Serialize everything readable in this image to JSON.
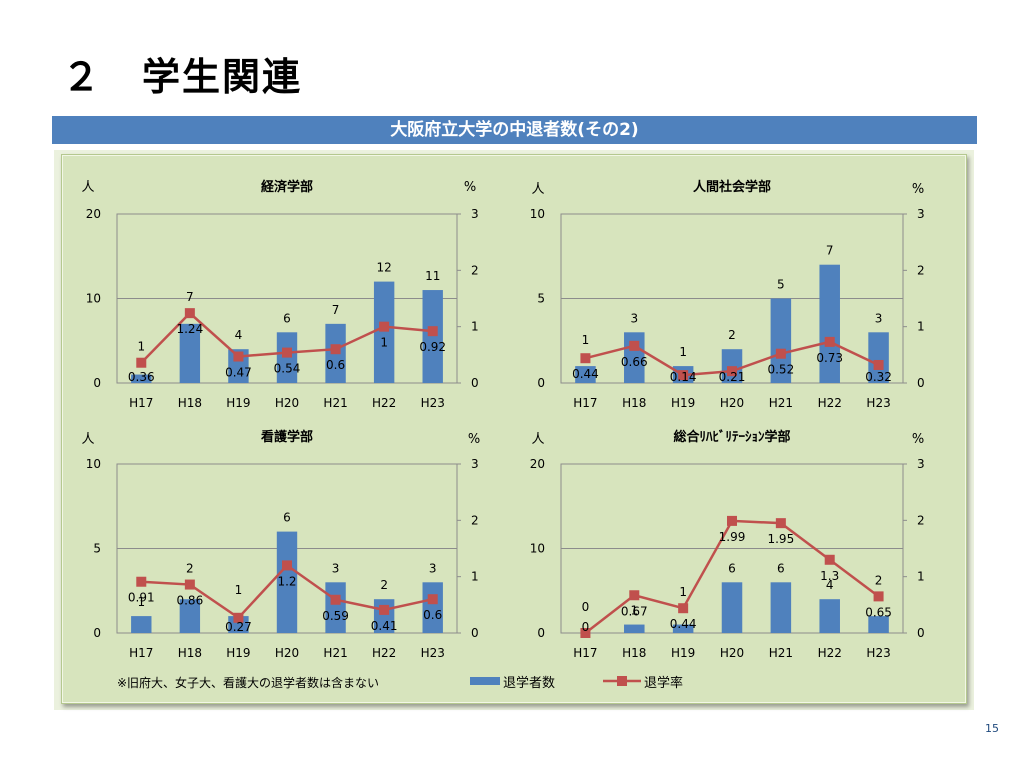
{
  "title": "２　学生関連",
  "banner": "大阪府立大学の中退者数(その2)",
  "page_number": "15",
  "colors": {
    "bar": "#4f81bd",
    "line": "#c0504d",
    "panel": "#d7e4bd"
  },
  "footnote": "※旧府大、女子大、看護大の退学者数は含まない",
  "legend": {
    "bar_label": "退学者数",
    "line_label": "退学率"
  },
  "chart_data": [
    {
      "type": "bar",
      "title": "経済学部",
      "ylabel": "人",
      "y2label": "%",
      "categories": [
        "H17",
        "H18",
        "H19",
        "H20",
        "H21",
        "H22",
        "H23"
      ],
      "ylim": [
        0,
        20
      ],
      "yticks": [
        0,
        10,
        20
      ],
      "y2lim": [
        0,
        3
      ],
      "y2ticks": [
        0,
        1,
        2,
        3
      ],
      "series": [
        {
          "name": "退学者数",
          "type": "bar",
          "axis": "left",
          "values": [
            1,
            7,
            4,
            6,
            7,
            12,
            11
          ]
        },
        {
          "name": "退学率",
          "type": "line",
          "axis": "right",
          "values": [
            0.36,
            1.24,
            0.47,
            0.54,
            0.6,
            1,
            0.92
          ]
        }
      ]
    },
    {
      "type": "bar",
      "title": "人間社会学部",
      "ylabel": "人",
      "y2label": "%",
      "categories": [
        "H17",
        "H18",
        "H19",
        "H20",
        "H21",
        "H22",
        "H23"
      ],
      "ylim": [
        0,
        10
      ],
      "yticks": [
        0,
        5,
        10
      ],
      "y2lim": [
        0,
        3
      ],
      "y2ticks": [
        0,
        1,
        2,
        3
      ],
      "series": [
        {
          "name": "退学者数",
          "type": "bar",
          "axis": "left",
          "values": [
            1,
            3,
            1,
            2,
            5,
            7,
            3
          ]
        },
        {
          "name": "退学率",
          "type": "line",
          "axis": "right",
          "values": [
            0.44,
            0.66,
            0.14,
            0.21,
            0.52,
            0.73,
            0.32
          ]
        }
      ]
    },
    {
      "type": "bar",
      "title": "看護学部",
      "ylabel": "人",
      "y2label": "%",
      "categories": [
        "H17",
        "H18",
        "H19",
        "H20",
        "H21",
        "H22",
        "H23"
      ],
      "ylim": [
        0,
        10
      ],
      "yticks": [
        0,
        5,
        10
      ],
      "y2lim": [
        0,
        3
      ],
      "y2ticks": [
        0,
        1,
        2,
        3
      ],
      "series": [
        {
          "name": "退学者数",
          "type": "bar",
          "axis": "left",
          "values": [
            1,
            2,
            1,
            6,
            3,
            2,
            3
          ]
        },
        {
          "name": "退学率",
          "type": "line",
          "axis": "right",
          "values": [
            0.91,
            0.86,
            0.27,
            1.2,
            0.59,
            0.41,
            0.6
          ]
        }
      ]
    },
    {
      "type": "bar",
      "title": "総合ﾘﾊﾋﾞﾘﾃｰｼｮﾝ学部",
      "ylabel": "人",
      "y2label": "%",
      "categories": [
        "H17",
        "H18",
        "H19",
        "H20",
        "H21",
        "H22",
        "H23"
      ],
      "ylim": [
        0,
        20
      ],
      "yticks": [
        0,
        10,
        20
      ],
      "y2lim": [
        0,
        3
      ],
      "y2ticks": [
        0,
        1,
        2,
        3
      ],
      "series": [
        {
          "name": "退学者数",
          "type": "bar",
          "axis": "left",
          "values": [
            0,
            1,
            1,
            6,
            6,
            4,
            2
          ]
        },
        {
          "name": "退学率",
          "type": "line",
          "axis": "right",
          "values": [
            0,
            0.67,
            0.44,
            1.99,
            1.95,
            1.3,
            0.65
          ]
        }
      ]
    }
  ]
}
